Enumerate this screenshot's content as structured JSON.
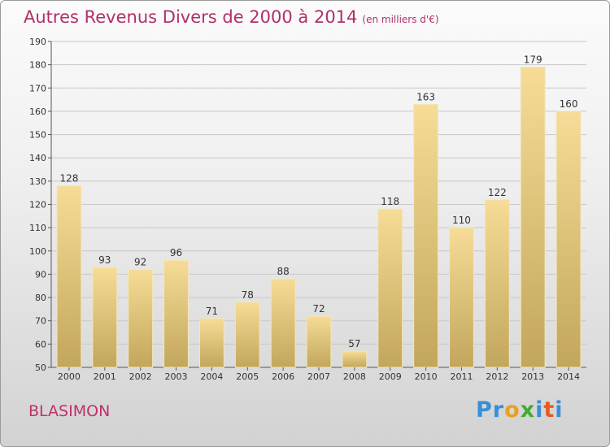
{
  "header": {
    "title": "Autres Revenus Divers de 2000 à 2014",
    "subtitle": "(en milliers d'€)"
  },
  "footer": {
    "city": "BLASIMON",
    "brand_letters": [
      {
        "char": "P",
        "color": "#3a8fd6"
      },
      {
        "char": "r",
        "color": "#3a8fd6"
      },
      {
        "char": "o",
        "color": "#e8a020"
      },
      {
        "char": "x",
        "color": "#44aa33"
      },
      {
        "char": "i",
        "color": "#3a8fd6"
      },
      {
        "char": "t",
        "color": "#e85a20"
      },
      {
        "char": "i",
        "color": "#3a8fd6"
      }
    ]
  },
  "chart_data": {
    "type": "bar",
    "title": "Autres Revenus Divers de 2000 à 2014",
    "subtitle": "(en milliers d'€)",
    "xlabel": "",
    "ylabel": "",
    "categories": [
      "2000",
      "2001",
      "2002",
      "2003",
      "2004",
      "2005",
      "2006",
      "2007",
      "2008",
      "2009",
      "2010",
      "2011",
      "2012",
      "2013",
      "2014"
    ],
    "values": [
      128,
      93,
      92,
      96,
      71,
      78,
      88,
      72,
      57,
      118,
      163,
      110,
      122,
      179,
      160
    ],
    "ylim": [
      50,
      190
    ],
    "yticks": [
      50,
      60,
      70,
      80,
      90,
      100,
      110,
      120,
      130,
      140,
      150,
      160,
      170,
      180,
      190
    ],
    "grid": true,
    "bar_color": "#d8bf72",
    "label_values": true
  }
}
